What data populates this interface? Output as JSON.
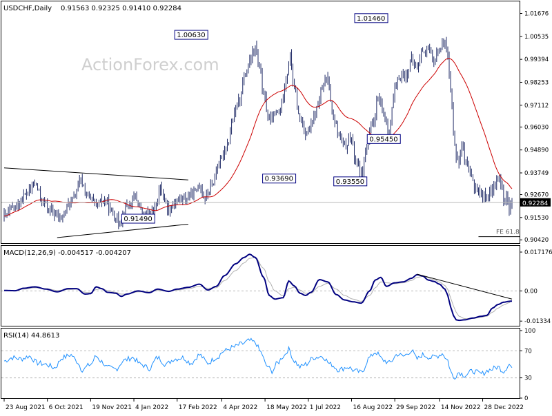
{
  "header": {
    "symbol": "USDCHF,Daily",
    "ohlc": "0.91563 0.92325 0.91410 0.92284"
  },
  "watermark": "ActionForex.com",
  "colors": {
    "candle": "#1f2a66",
    "sma": "#cc0000",
    "macd_line": "#000080",
    "macd_signal": "#b0b0b0",
    "rsi": "#1e90ff",
    "guide": "#b8b8b8",
    "label_border": "#000080"
  },
  "chart_data": [
    {
      "type": "line",
      "panel": "price",
      "y_ticks": [
        "1.01676",
        "1.00535",
        "0.99394",
        "0.98253",
        "0.97112",
        "0.96030",
        "0.94890",
        "0.93749",
        "0.92670",
        "0.91530",
        "0.90420"
      ],
      "y_tick_values": [
        1.01676,
        1.00535,
        0.99394,
        0.98253,
        0.97112,
        0.9603,
        0.9489,
        0.93749,
        0.9267,
        0.9153,
        0.9042
      ],
      "ylim": [
        0.9036,
        1.0207
      ],
      "current_price_label": "0.92284",
      "current_price": 0.92284,
      "fe_label": "FE 61.8",
      "fe_level": 0.9058,
      "annotations": [
        {
          "text": "1.00630",
          "value": 1.0063,
          "date_index": 146
        },
        {
          "text": "1.01460",
          "value": 1.0146,
          "date_index": 275
        },
        {
          "text": "0.93690",
          "value": 0.9369,
          "date_index": 209
        },
        {
          "text": "0.95450",
          "value": 0.9545,
          "date_index": 284
        },
        {
          "text": "0.93550",
          "value": 0.9355,
          "date_index": 260
        },
        {
          "text": "0.91490",
          "value": 0.9149,
          "date_index": 108
        }
      ],
      "close_anchors": [
        [
          0,
          0.916
        ],
        [
          8,
          0.9205
        ],
        [
          16,
          0.927
        ],
        [
          22,
          0.932
        ],
        [
          28,
          0.923
        ],
        [
          34,
          0.918
        ],
        [
          40,
          0.915
        ],
        [
          48,
          0.923
        ],
        [
          55,
          0.933
        ],
        [
          60,
          0.926
        ],
        [
          66,
          0.921
        ],
        [
          72,
          0.924
        ],
        [
          78,
          0.917
        ],
        [
          82,
          0.913
        ],
        [
          88,
          0.921
        ],
        [
          94,
          0.925
        ],
        [
          100,
          0.916
        ],
        [
          106,
          0.917
        ],
        [
          112,
          0.929
        ],
        [
          118,
          0.92
        ],
        [
          124,
          0.924
        ],
        [
          130,
          0.925
        ],
        [
          136,
          0.927
        ],
        [
          140,
          0.932
        ],
        [
          144,
          0.925
        ],
        [
          148,
          0.93
        ],
        [
          154,
          0.942
        ],
        [
          160,
          0.952
        ],
        [
          164,
          0.964
        ],
        [
          168,
          0.973
        ],
        [
          172,
          0.985
        ],
        [
          176,
          0.992
        ],
        [
          180,
          1.0
        ],
        [
          183,
          0.989
        ],
        [
          186,
          0.976
        ],
        [
          190,
          0.963
        ],
        [
          194,
          0.966
        ],
        [
          198,
          0.969
        ],
        [
          202,
          0.985
        ],
        [
          205,
          0.995
        ],
        [
          208,
          0.979
        ],
        [
          212,
          0.964
        ],
        [
          216,
          0.958
        ],
        [
          220,
          0.96
        ],
        [
          224,
          0.969
        ],
        [
          228,
          0.979
        ],
        [
          232,
          0.985
        ],
        [
          236,
          0.965
        ],
        [
          240,
          0.956
        ],
        [
          244,
          0.95
        ],
        [
          248,
          0.956
        ],
        [
          252,
          0.944
        ],
        [
          256,
          0.937
        ],
        [
          260,
          0.951
        ],
        [
          264,
          0.961
        ],
        [
          268,
          0.974
        ],
        [
          272,
          0.966
        ],
        [
          276,
          0.959
        ],
        [
          280,
          0.978
        ],
        [
          284,
          0.986
        ],
        [
          288,
          0.986
        ],
        [
          292,
          0.993
        ],
        [
          296,
          0.99
        ],
        [
          300,
          0.999
        ],
        [
          304,
          0.998
        ],
        [
          308,
          0.993
        ],
        [
          312,
          1.0
        ],
        [
          314,
          1.0
        ],
        [
          316,
          1.005
        ],
        [
          318,
          0.995
        ],
        [
          320,
          0.978
        ],
        [
          322,
          0.96
        ],
        [
          324,
          0.946
        ],
        [
          326,
          0.943
        ],
        [
          328,
          0.954
        ],
        [
          330,
          0.943
        ],
        [
          334,
          0.936
        ],
        [
          338,
          0.93
        ],
        [
          342,
          0.927
        ],
        [
          346,
          0.925
        ],
        [
          350,
          0.929
        ],
        [
          354,
          0.935
        ],
        [
          356,
          0.932
        ],
        [
          358,
          0.923
        ],
        [
          360,
          0.928
        ],
        [
          362,
          0.918
        ],
        [
          364,
          0.9228
        ]
      ]
    },
    {
      "type": "line",
      "panel": "macd",
      "title": "MACD(12,26,9) -0.004517 -0.004207",
      "y_ticks": [
        "0.017176",
        "0.00",
        "-0.01334"
      ],
      "y_tick_values": [
        0.017176,
        0.0,
        -0.01334
      ],
      "ylim": [
        -0.0151,
        0.019
      ],
      "macd_anchors": [
        [
          0,
          0.0002
        ],
        [
          8,
          0.0001
        ],
        [
          14,
          0.0012
        ],
        [
          22,
          0.0018
        ],
        [
          30,
          0.0008
        ],
        [
          38,
          -0.0004
        ],
        [
          46,
          0.001
        ],
        [
          52,
          0.001
        ],
        [
          58,
          -0.0014
        ],
        [
          62,
          -0.0012
        ],
        [
          66,
          0.0018
        ],
        [
          70,
          0.001
        ],
        [
          74,
          -0.0006
        ],
        [
          80,
          -0.001
        ],
        [
          84,
          -0.0024
        ],
        [
          88,
          -0.0014
        ],
        [
          96,
          0.0
        ],
        [
          104,
          -0.0008
        ],
        [
          110,
          0.0008
        ],
        [
          118,
          -0.0002
        ],
        [
          124,
          0.0008
        ],
        [
          132,
          0.0016
        ],
        [
          140,
          0.003
        ],
        [
          146,
          0.0004
        ],
        [
          152,
          0.002
        ],
        [
          158,
          0.0068
        ],
        [
          166,
          0.012
        ],
        [
          172,
          0.0148
        ],
        [
          176,
          0.0162
        ],
        [
          180,
          0.0148
        ],
        [
          186,
          0.006
        ],
        [
          190,
          -0.002
        ],
        [
          194,
          -0.0036
        ],
        [
          200,
          -0.003
        ],
        [
          204,
          0.0044
        ],
        [
          208,
          0.0022
        ],
        [
          212,
          -0.001
        ],
        [
          216,
          -0.002
        ],
        [
          220,
          -0.0006
        ],
        [
          226,
          0.005
        ],
        [
          232,
          0.004
        ],
        [
          238,
          -0.0016
        ],
        [
          244,
          -0.004
        ],
        [
          250,
          -0.0048
        ],
        [
          256,
          -0.0054
        ],
        [
          262,
          0.0
        ],
        [
          266,
          0.0048
        ],
        [
          270,
          0.006
        ],
        [
          274,
          0.002
        ],
        [
          280,
          0.0036
        ],
        [
          286,
          0.004
        ],
        [
          292,
          0.0056
        ],
        [
          296,
          0.0072
        ],
        [
          300,
          0.0066
        ],
        [
          304,
          0.0048
        ],
        [
          308,
          0.0042
        ],
        [
          312,
          0.003
        ],
        [
          316,
          0.0008
        ],
        [
          318,
          -0.002
        ],
        [
          320,
          -0.007
        ],
        [
          322,
          -0.0108
        ],
        [
          324,
          -0.0128
        ],
        [
          326,
          -0.013
        ],
        [
          330,
          -0.0128
        ],
        [
          336,
          -0.012
        ],
        [
          342,
          -0.0112
        ],
        [
          346,
          -0.0108
        ],
        [
          350,
          -0.0076
        ],
        [
          354,
          -0.006
        ],
        [
          358,
          -0.005
        ],
        [
          362,
          -0.0046
        ],
        [
          364,
          -0.0045
        ]
      ],
      "signal_anchors": [
        [
          0,
          0.0002
        ],
        [
          8,
          0.0002
        ],
        [
          14,
          0.0008
        ],
        [
          22,
          0.0014
        ],
        [
          30,
          0.001
        ],
        [
          38,
          0.0002
        ],
        [
          46,
          0.0006
        ],
        [
          52,
          0.0008
        ],
        [
          58,
          -0.0006
        ],
        [
          62,
          -0.0008
        ],
        [
          66,
          0.0006
        ],
        [
          70,
          0.001
        ],
        [
          74,
          0.0002
        ],
        [
          80,
          -0.0006
        ],
        [
          84,
          -0.0014
        ],
        [
          88,
          -0.0014
        ],
        [
          96,
          -0.0004
        ],
        [
          104,
          -0.0004
        ],
        [
          110,
          0.0002
        ],
        [
          118,
          0.0
        ],
        [
          124,
          0.0004
        ],
        [
          132,
          0.001
        ],
        [
          140,
          0.002
        ],
        [
          146,
          0.0012
        ],
        [
          152,
          0.0014
        ],
        [
          158,
          0.0046
        ],
        [
          166,
          0.009
        ],
        [
          172,
          0.0124
        ],
        [
          176,
          0.0144
        ],
        [
          180,
          0.0148
        ],
        [
          186,
          0.01
        ],
        [
          190,
          0.004
        ],
        [
          194,
          0.0
        ],
        [
          200,
          -0.0022
        ],
        [
          204,
          0.001
        ],
        [
          208,
          0.0016
        ],
        [
          212,
          0.0004
        ],
        [
          216,
          -0.001
        ],
        [
          220,
          -0.001
        ],
        [
          226,
          0.002
        ],
        [
          232,
          0.0034
        ],
        [
          238,
          0.0008
        ],
        [
          244,
          -0.002
        ],
        [
          250,
          -0.0036
        ],
        [
          256,
          -0.0046
        ],
        [
          262,
          -0.002
        ],
        [
          266,
          0.0014
        ],
        [
          270,
          0.004
        ],
        [
          274,
          0.0036
        ],
        [
          280,
          0.0032
        ],
        [
          286,
          0.0036
        ],
        [
          292,
          0.0046
        ],
        [
          296,
          0.006
        ],
        [
          300,
          0.0064
        ],
        [
          304,
          0.0058
        ],
        [
          308,
          0.005
        ],
        [
          312,
          0.004
        ],
        [
          316,
          0.0024
        ],
        [
          318,
          0.0006
        ],
        [
          320,
          -0.003
        ],
        [
          322,
          -0.0066
        ],
        [
          324,
          -0.0094
        ],
        [
          326,
          -0.0112
        ],
        [
          330,
          -0.0122
        ],
        [
          336,
          -0.0122
        ],
        [
          342,
          -0.0116
        ],
        [
          346,
          -0.0112
        ],
        [
          350,
          -0.0094
        ],
        [
          354,
          -0.0076
        ],
        [
          358,
          -0.0062
        ],
        [
          362,
          -0.0052
        ],
        [
          364,
          -0.0042
        ]
      ]
    },
    {
      "type": "line",
      "panel": "rsi",
      "title": "RSI(14) 44.8613",
      "y_ticks": [
        "100",
        "70",
        "30",
        "0"
      ],
      "y_tick_values": [
        100,
        70,
        30,
        0
      ],
      "ylim": [
        0,
        100
      ],
      "levels": [
        70,
        30
      ],
      "rsi_anchors": [
        [
          0,
          55
        ],
        [
          6,
          60
        ],
        [
          12,
          58
        ],
        [
          18,
          62
        ],
        [
          24,
          52
        ],
        [
          30,
          50
        ],
        [
          36,
          45
        ],
        [
          42,
          60
        ],
        [
          48,
          64
        ],
        [
          52,
          55
        ],
        [
          56,
          42
        ],
        [
          62,
          50
        ],
        [
          66,
          62
        ],
        [
          70,
          54
        ],
        [
          74,
          45
        ],
        [
          80,
          43
        ],
        [
          86,
          56
        ],
        [
          92,
          60
        ],
        [
          98,
          50
        ],
        [
          104,
          44
        ],
        [
          110,
          60
        ],
        [
          116,
          50
        ],
        [
          122,
          58
        ],
        [
          128,
          60
        ],
        [
          134,
          52
        ],
        [
          140,
          64
        ],
        [
          146,
          52
        ],
        [
          152,
          60
        ],
        [
          158,
          70
        ],
        [
          164,
          75
        ],
        [
          170,
          80
        ],
        [
          176,
          85
        ],
        [
          180,
          82
        ],
        [
          184,
          68
        ],
        [
          188,
          48
        ],
        [
          192,
          40
        ],
        [
          196,
          52
        ],
        [
          200,
          62
        ],
        [
          204,
          72
        ],
        [
          208,
          55
        ],
        [
          212,
          46
        ],
        [
          216,
          50
        ],
        [
          222,
          60
        ],
        [
          228,
          62
        ],
        [
          234,
          50
        ],
        [
          240,
          42
        ],
        [
          246,
          46
        ],
        [
          252,
          40
        ],
        [
          256,
          38
        ],
        [
          262,
          60
        ],
        [
          266,
          68
        ],
        [
          272,
          56
        ],
        [
          276,
          52
        ],
        [
          282,
          65
        ],
        [
          286,
          62
        ],
        [
          292,
          70
        ],
        [
          296,
          58
        ],
        [
          300,
          64
        ],
        [
          306,
          60
        ],
        [
          310,
          62
        ],
        [
          314,
          66
        ],
        [
          318,
          56
        ],
        [
          320,
          40
        ],
        [
          322,
          30
        ],
        [
          326,
          38
        ],
        [
          330,
          34
        ],
        [
          336,
          40
        ],
        [
          342,
          36
        ],
        [
          348,
          42
        ],
        [
          354,
          46
        ],
        [
          358,
          40
        ],
        [
          362,
          50
        ],
        [
          364,
          44.9
        ]
      ]
    }
  ],
  "x_axis": {
    "labels": [
      "23 Aug 2021",
      "6 Oct 2021",
      "19 Nov 2021",
      "4 Jan 2022",
      "17 Feb 2022",
      "4 Apr 2022",
      "18 May 2022",
      "1 Jul 2022",
      "16 Aug 2022",
      "29 Sep 2022",
      "14 Nov 2022",
      "28 Dec 2022"
    ],
    "label_indices": [
      0,
      31,
      62,
      93,
      124,
      156,
      187,
      218,
      249,
      280,
      312,
      343
    ],
    "count": 365
  }
}
